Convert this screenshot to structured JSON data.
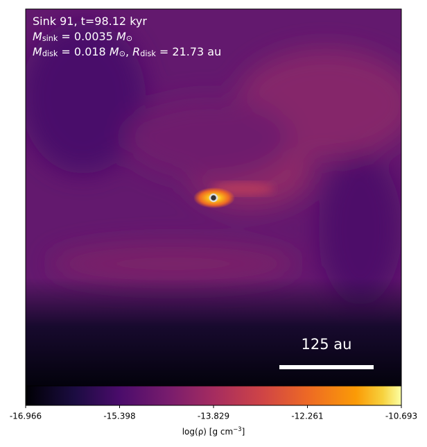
{
  "chart_data": {
    "type": "density-map",
    "colormap": "inferno",
    "annotations": [
      [
        {
          "text": "Sink 91, t=98.12 kyr",
          "style": "normal"
        }
      ],
      [
        {
          "text": "M",
          "style": "italic"
        },
        {
          "text": "sink",
          "style": "sub"
        },
        {
          "text": " = 0.0035 ",
          "style": "normal"
        },
        {
          "text": "M",
          "style": "italic"
        },
        {
          "text": "⊙",
          "style": "sub"
        }
      ],
      [
        {
          "text": "M",
          "style": "italic"
        },
        {
          "text": "disk",
          "style": "sub"
        },
        {
          "text": " = 0.018 ",
          "style": "normal"
        },
        {
          "text": "M",
          "style": "italic"
        },
        {
          "text": "⊙",
          "style": "sub"
        },
        {
          "text": ", ",
          "style": "normal"
        },
        {
          "text": "R",
          "style": "italic"
        },
        {
          "text": "disk",
          "style": "sub"
        },
        {
          "text": " = 21.73 au",
          "style": "normal"
        }
      ]
    ],
    "scale_bar": "125 au",
    "colorbar": {
      "label": [
        {
          "text": "log(ρ) [g cm",
          "style": "normal"
        },
        {
          "text": "−3",
          "style": "sup"
        },
        {
          "text": "]",
          "style": "normal"
        }
      ],
      "lim": [
        -16.966,
        -10.693
      ],
      "ticks": [
        -16.966,
        -15.398,
        -13.829,
        -12.261,
        -10.693
      ]
    }
  }
}
